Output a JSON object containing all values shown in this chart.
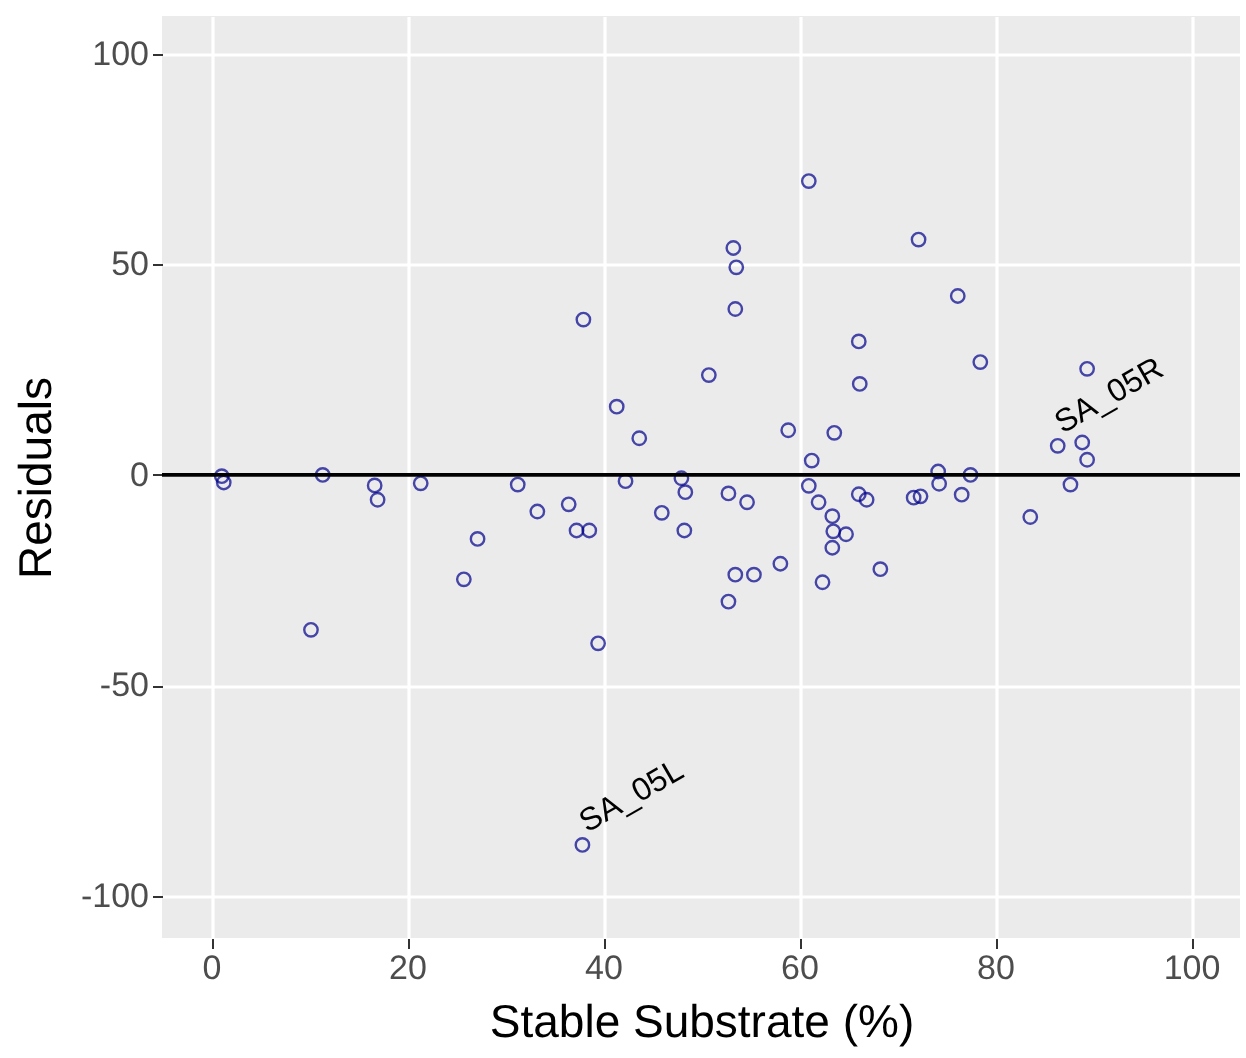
{
  "chart_data": {
    "type": "scatter",
    "xlabel": "Stable Substrate (%)",
    "ylabel": "Residuals",
    "x": [
      1.1,
      1.3,
      11.4,
      16.7,
      17.0,
      21.4,
      31.3,
      33.3,
      36.5,
      37.3,
      38.6,
      27.2,
      25.8,
      10.2,
      39.5,
      37.9,
      42.3,
      43.7,
      41.4,
      38.0,
      46.0,
      48.3,
      48.0,
      48.4,
      58.9,
      63.6,
      61.3,
      61.0,
      62.0,
      63.4,
      63.5,
      64.8,
      63.4,
      62.4,
      68.3,
      58.1,
      55.4,
      53.5,
      52.8,
      52.8,
      54.7,
      66.1,
      66.9,
      71.7,
      72.4,
      74.2,
      74.3,
      76.6,
      77.5,
      83.6,
      87.7,
      86.4,
      88.9,
      89.4,
      61.0,
      53.3,
      53.6,
      53.5,
      50.8,
      72.2,
      76.2,
      66.1,
      66.2,
      78.5,
      89.4
    ],
    "series": [
      {
        "color": "#00008b",
        "values": [
          -0.3,
          -1.8,
          0,
          -2.5,
          -5.9,
          -2.0,
          -2.3,
          -8.7,
          -7.0,
          -13.2,
          -13.2,
          -15.2,
          -24.8,
          -36.8,
          -40.0,
          -87.9,
          -1.5,
          8.7,
          16.2,
          36.9,
          -9.0,
          -13.2,
          -0.8,
          -4.1,
          10.6,
          10.0,
          3.4,
          -2.6,
          -6.5,
          -9.8,
          -13.4,
          -14.1,
          -17.3,
          -25.5,
          -22.4,
          -21.1,
          -23.7,
          -23.7,
          -30.1,
          -4.4,
          -6.5,
          -4.6,
          -5.9,
          -5.4,
          -5.1,
          0.8,
          -2.1,
          -4.7,
          0,
          -10.0,
          -2.3,
          6.9,
          7.7,
          3.6,
          69.8,
          53.9,
          49.3,
          39.4,
          23.7,
          55.9,
          42.5,
          31.7,
          21.6,
          26.8,
          25.2
        ]
      }
    ],
    "marker": "circle",
    "xlim": [
      -5,
      105
    ],
    "xticks": [
      0,
      20,
      40,
      60,
      80,
      100
    ],
    "ylim": [
      -110,
      109
    ],
    "yticks": [
      -100,
      -50,
      0,
      50,
      100
    ],
    "grid": true,
    "ref_lines": [
      {
        "axis": "y",
        "value": 0,
        "color": "#000000"
      }
    ],
    "annotations": [
      {
        "text": "SA_05L",
        "x": 37.9,
        "y": -87.9
      },
      {
        "text": "SA_05R",
        "x": 86.4,
        "y": 6.9
      }
    ]
  }
}
